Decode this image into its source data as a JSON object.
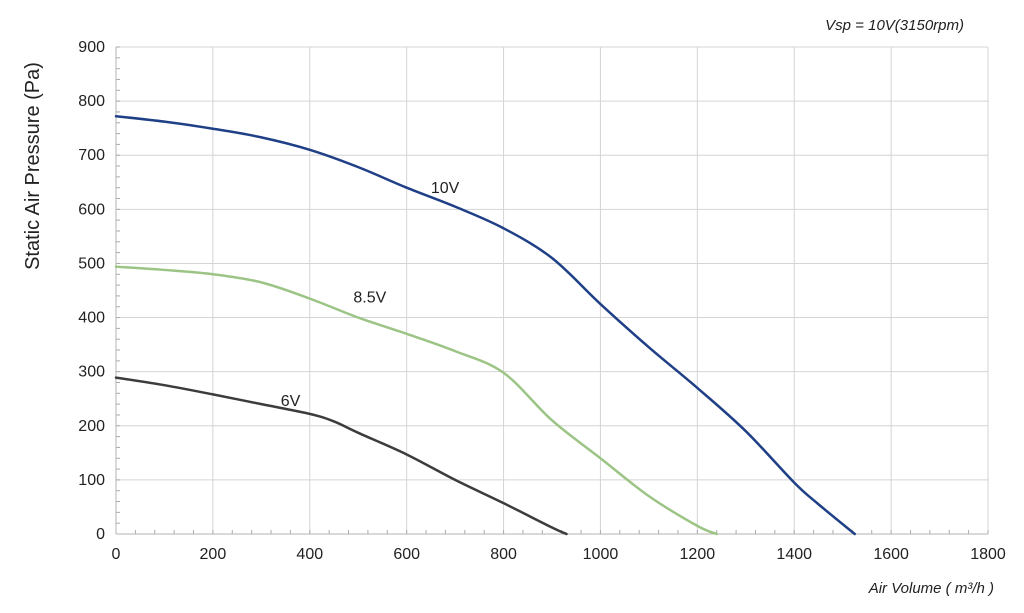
{
  "chart_data": {
    "type": "line",
    "annotation": "Vsp = 10V(3150rpm)",
    "xlabel": "Air Volume ( m³/h )",
    "ylabel": "Static Air Pressure  (Pa)",
    "xlim": [
      0,
      1800
    ],
    "ylim": [
      0,
      900
    ],
    "xticks": [
      0,
      200,
      400,
      600,
      800,
      1000,
      1200,
      1400,
      1600,
      1800
    ],
    "yticks": [
      0,
      100,
      200,
      300,
      400,
      500,
      600,
      700,
      800,
      900
    ],
    "grid": true,
    "series": [
      {
        "name": "10V",
        "color": "#1f3f86",
        "label_at": [
          650,
          630
        ],
        "points": [
          [
            0,
            772
          ],
          [
            100,
            762
          ],
          [
            200,
            749
          ],
          [
            300,
            733
          ],
          [
            400,
            710
          ],
          [
            500,
            678
          ],
          [
            600,
            640
          ],
          [
            700,
            605
          ],
          [
            800,
            565
          ],
          [
            900,
            510
          ],
          [
            1000,
            425
          ],
          [
            1100,
            345
          ],
          [
            1200,
            270
          ],
          [
            1300,
            190
          ],
          [
            1400,
            95
          ],
          [
            1450,
            55
          ],
          [
            1525,
            0
          ]
        ]
      },
      {
        "name": "8.5V",
        "color": "#9bc485",
        "label_at": [
          490,
          428
        ],
        "points": [
          [
            0,
            494
          ],
          [
            100,
            488
          ],
          [
            200,
            480
          ],
          [
            300,
            465
          ],
          [
            400,
            435
          ],
          [
            500,
            400
          ],
          [
            600,
            370
          ],
          [
            700,
            338
          ],
          [
            800,
            298
          ],
          [
            900,
            210
          ],
          [
            1000,
            140
          ],
          [
            1100,
            70
          ],
          [
            1200,
            15
          ],
          [
            1240,
            0
          ]
        ]
      },
      {
        "name": "6V",
        "color": "#3c3c3c",
        "label_at": [
          340,
          237
        ],
        "points": [
          [
            0,
            289
          ],
          [
            100,
            275
          ],
          [
            200,
            258
          ],
          [
            300,
            240
          ],
          [
            400,
            222
          ],
          [
            450,
            208
          ],
          [
            500,
            187
          ],
          [
            600,
            147
          ],
          [
            700,
            100
          ],
          [
            800,
            57
          ],
          [
            900,
            12
          ],
          [
            930,
            0
          ]
        ]
      }
    ]
  }
}
